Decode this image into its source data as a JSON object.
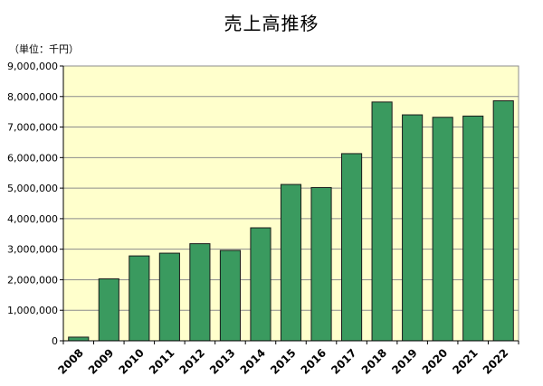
{
  "chart_data": {
    "type": "bar",
    "title": "売上高推移",
    "unit_label": "（単位：千円）",
    "xlabel": "",
    "ylabel": "",
    "categories": [
      "2008",
      "2009",
      "2010",
      "2011",
      "2012",
      "2013",
      "2014",
      "2015",
      "2016",
      "2017",
      "2018",
      "2019",
      "2020",
      "2021",
      "2022"
    ],
    "series": [
      {
        "values": [
          120000,
          2030000,
          2780000,
          2870000,
          3180000,
          2960000,
          3700000,
          5120000,
          5020000,
          6130000,
          7820000,
          7400000,
          7320000,
          7360000,
          7860000
        ]
      }
    ],
    "ylim": [
      0,
      9000000
    ],
    "yticks": [
      0,
      1000000,
      2000000,
      3000000,
      4000000,
      5000000,
      6000000,
      7000000,
      8000000,
      9000000
    ],
    "ytick_labels": [
      "0",
      "1,000,000",
      "2,000,000",
      "3,000,000",
      "4,000,000",
      "5,000,000",
      "6,000,000",
      "7,000,000",
      "8,000,000",
      "9,000,000"
    ],
    "grid": true,
    "legend": "none",
    "colors": {
      "bar_fill": "#3a9a5f",
      "bar_stroke": "#1a1a1a",
      "plot_background": "#ffffcc",
      "gridline": "#8c8c8c",
      "axis": "#000000"
    }
  }
}
